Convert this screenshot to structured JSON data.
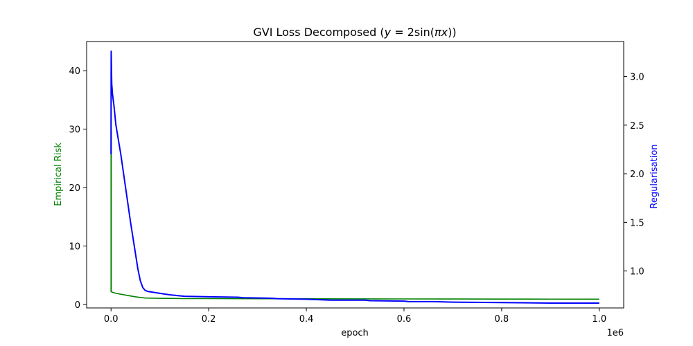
{
  "chart_data": {
    "type": "line",
    "title": "GVI Loss Decomposed ($y = 2\\sin(\\pi x)$)",
    "title_parts": {
      "prefix": "GVI Loss Decomposed (",
      "y": "y",
      "equals": " = 2sin(",
      "pi_x": "πx",
      "close_inner": ")",
      "close_outer": ")"
    },
    "xlabel": "epoch",
    "x_offset_label": "1e6",
    "x_scale": 1000000,
    "xlim": [
      -0.05,
      1.05
    ],
    "x_ticks": [
      0.0,
      0.2,
      0.4,
      0.6,
      0.8,
      1.0
    ],
    "x_tick_labels": [
      "0.0",
      "0.2",
      "0.4",
      "0.6",
      "0.8",
      "1.0"
    ],
    "y_left": {
      "label": "Empirical Risk",
      "color": "#008000",
      "lim": [
        -0.6,
        45
      ],
      "ticks": [
        0,
        10,
        20,
        30,
        40
      ],
      "tick_labels": [
        "0",
        "10",
        "20",
        "30",
        "40"
      ]
    },
    "y_right": {
      "label": "Regularisation",
      "color": "#0000ff",
      "lim": [
        0.62,
        3.36
      ],
      "ticks": [
        1.0,
        1.5,
        2.0,
        2.5,
        3.0
      ],
      "tick_labels": [
        "1.0",
        "1.5",
        "2.0",
        "2.5",
        "3.0"
      ]
    },
    "grid": false,
    "legend": "none",
    "series": [
      {
        "axis": "left",
        "color": "#008000",
        "x": [
          0.0,
          0.0,
          0.0005,
          0.0005,
          0.002,
          0.01,
          0.03,
          0.05,
          0.07,
          0.1,
          0.15,
          0.2,
          0.3,
          0.4,
          0.5,
          0.6,
          0.7,
          0.8,
          0.9,
          1.0
        ],
        "y": [
          40.0,
          2.2,
          29.8,
          2.2,
          2.1,
          1.9,
          1.6,
          1.3,
          1.1,
          1.05,
          1.0,
          1.0,
          0.98,
          0.96,
          0.95,
          0.94,
          0.93,
          0.92,
          0.91,
          0.9
        ]
      },
      {
        "axis": "right",
        "color": "#0000ff",
        "x": [
          0.0,
          0.0003,
          0.0008,
          0.0015,
          0.003,
          0.006,
          0.01,
          0.02,
          0.03,
          0.04,
          0.05,
          0.055,
          0.06,
          0.065,
          0.07,
          0.075,
          0.1,
          0.12,
          0.15,
          0.2,
          0.26,
          0.27,
          0.33,
          0.34,
          0.4,
          0.45,
          0.52,
          0.53,
          0.6,
          0.61,
          0.66,
          0.7,
          0.8,
          0.9,
          1.0
        ],
        "y": [
          2.2,
          3.26,
          3.1,
          2.92,
          2.82,
          2.7,
          2.5,
          2.2,
          1.85,
          1.5,
          1.18,
          1.02,
          0.9,
          0.83,
          0.8,
          0.79,
          0.77,
          0.755,
          0.74,
          0.735,
          0.73,
          0.725,
          0.72,
          0.715,
          0.71,
          0.7,
          0.7,
          0.695,
          0.69,
          0.685,
          0.685,
          0.68,
          0.675,
          0.67,
          0.67
        ]
      }
    ]
  }
}
